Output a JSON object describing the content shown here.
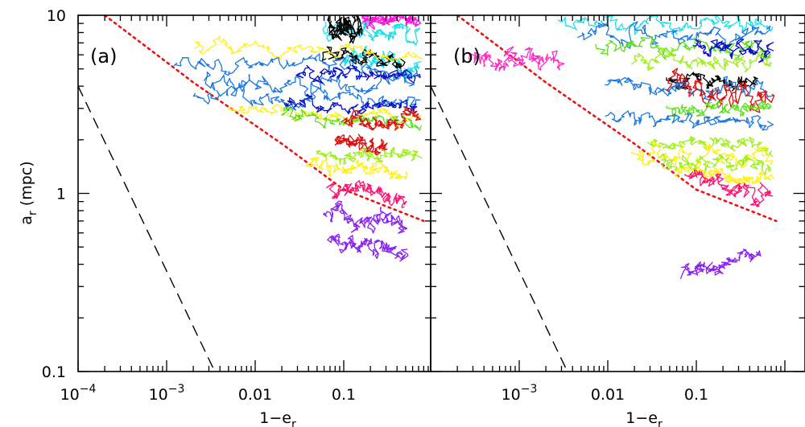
{
  "chart_data": [
    {
      "type": "line",
      "panel": "a",
      "panel_label": "(a)",
      "xlabel": "1−e",
      "xlabel_sub": "r",
      "ylabel": "a",
      "ylabel_sub": "r",
      "ylabel_unit": " (mpc)",
      "xscale": "log",
      "yscale": "log",
      "xlim": [
        0.0001,
        0.8
      ],
      "ylim": [
        0.1,
        10
      ],
      "x_ticks": [
        {
          "value": 0.0001,
          "base": "10",
          "exp": "−4"
        },
        {
          "value": 0.001,
          "base": "10",
          "exp": "−3"
        },
        {
          "value": 0.01,
          "base": "0.01",
          "exp": ""
        },
        {
          "value": 0.1,
          "base": "0.1",
          "exp": ""
        }
      ],
      "y_ticks": [
        {
          "value": 0.1,
          "label": "0.1"
        },
        {
          "value": 1,
          "label": "1"
        },
        {
          "value": 10,
          "label": "10"
        }
      ],
      "reference_lines": [
        {
          "style": "dashed",
          "color": "#000000",
          "x": [
            0.0001,
            0.0035
          ],
          "y": [
            4.0,
            0.1
          ]
        },
        {
          "style": "dotted",
          "color": "#ee1111",
          "x": [
            0.0002,
            0.002,
            0.02,
            0.1,
            0.8
          ],
          "y": [
            10,
            4.2,
            1.9,
            1.05,
            0.7
          ]
        }
      ],
      "series": [
        {
          "color": "#ff10e0",
          "x": [
            0.16,
            0.7
          ],
          "y": [
            9.5,
            9.4
          ],
          "jitter": 0.06
        },
        {
          "color": "#1ee0e8",
          "x": [
            0.06,
            0.7
          ],
          "y": [
            8.5,
            7.8
          ],
          "jitter": 0.07
        },
        {
          "color": "#1ee0e8",
          "x": [
            0.1,
            0.7
          ],
          "y": [
            5.6,
            5.2
          ],
          "jitter": 0.07
        },
        {
          "color": "#000000",
          "x": [
            0.07,
            0.16
          ],
          "y": [
            9.0,
            8.2
          ],
          "jitter": 0.08
        },
        {
          "color": "#000000",
          "x": [
            0.06,
            0.45
          ],
          "y": [
            6.0,
            5.6
          ],
          "jitter": 0.05
        },
        {
          "color": "#fff014",
          "x": [
            0.002,
            0.7
          ],
          "y": [
            6.6,
            6.2
          ],
          "jitter": 0.05
        },
        {
          "color": "#fff014",
          "x": [
            0.005,
            0.7
          ],
          "y": [
            3.0,
            2.6
          ],
          "jitter": 0.05
        },
        {
          "color": "#1a78e0",
          "x": [
            0.0012,
            0.7
          ],
          "y": [
            5.6,
            5.0
          ],
          "jitter": 0.06
        },
        {
          "color": "#1a78e0",
          "x": [
            0.0025,
            0.6
          ],
          "y": [
            4.3,
            4.0
          ],
          "jitter": 0.07
        },
        {
          "color": "#1a78e0",
          "x": [
            0.002,
            0.7
          ],
          "y": [
            3.5,
            3.3
          ],
          "jitter": 0.06
        },
        {
          "color": "#0a10cc",
          "x": [
            0.03,
            0.7
          ],
          "y": [
            4.8,
            4.5
          ],
          "jitter": 0.05
        },
        {
          "color": "#0a10cc",
          "x": [
            0.02,
            0.7
          ],
          "y": [
            3.2,
            3.0
          ],
          "jitter": 0.05
        },
        {
          "color": "#5ae01a",
          "x": [
            0.02,
            0.7
          ],
          "y": [
            2.7,
            2.5
          ],
          "jitter": 0.05
        },
        {
          "color": "#dd1010",
          "x": [
            0.1,
            0.7
          ],
          "y": [
            2.6,
            2.5
          ],
          "jitter": 0.05
        },
        {
          "color": "#dd1010",
          "x": [
            0.08,
            0.3
          ],
          "y": [
            2.0,
            1.8
          ],
          "jitter": 0.05
        },
        {
          "color": "#9ef01a",
          "x": [
            0.05,
            0.7
          ],
          "y": [
            1.65,
            1.55
          ],
          "jitter": 0.05
        },
        {
          "color": "#fff014",
          "x": [
            0.04,
            0.5
          ],
          "y": [
            1.45,
            1.3
          ],
          "jitter": 0.05
        },
        {
          "color": "#ff1474",
          "x": [
            0.07,
            0.5
          ],
          "y": [
            1.1,
            0.92
          ],
          "jitter": 0.06
        },
        {
          "color": "#8a22ee",
          "x": [
            0.06,
            0.5
          ],
          "y": [
            0.8,
            0.65
          ],
          "jitter": 0.07
        },
        {
          "color": "#8a22ee",
          "x": [
            0.07,
            0.5
          ],
          "y": [
            0.55,
            0.45
          ],
          "jitter": 0.06
        }
      ]
    },
    {
      "type": "line",
      "panel": "b",
      "panel_label": "(b)",
      "xlabel": "1−e",
      "xlabel_sub": "r",
      "xscale": "log",
      "yscale": "log",
      "xlim": [
        0.0001,
        0.8
      ],
      "ylim": [
        0.1,
        10
      ],
      "x_ticks": [
        {
          "value": 0.001,
          "base": "10",
          "exp": "−3"
        },
        {
          "value": 0.01,
          "base": "0.01",
          "exp": ""
        },
        {
          "value": 0.1,
          "base": "0.1",
          "exp": ""
        }
      ],
      "reference_lines": [
        {
          "style": "dashed",
          "color": "#000000",
          "x": [
            0.0001,
            0.0035
          ],
          "y": [
            4.0,
            0.1
          ]
        },
        {
          "style": "dotted",
          "color": "#ee1111",
          "x": [
            0.0002,
            0.002,
            0.02,
            0.1,
            0.8
          ],
          "y": [
            10,
            4.2,
            1.9,
            1.05,
            0.7
          ]
        }
      ],
      "series": [
        {
          "color": "#ff2ac8",
          "x": [
            0.0003,
            0.003
          ],
          "y": [
            5.8,
            5.4
          ],
          "jitter": 0.07
        },
        {
          "color": "#1ee0e8",
          "x": [
            0.003,
            0.7
          ],
          "y": [
            9.2,
            8.5
          ],
          "jitter": 0.06
        },
        {
          "color": "#1a78e0",
          "x": [
            0.005,
            0.7
          ],
          "y": [
            8.0,
            7.5
          ],
          "jitter": 0.06
        },
        {
          "color": "#5ae01a",
          "x": [
            0.008,
            0.7
          ],
          "y": [
            7.0,
            6.3
          ],
          "jitter": 0.06
        },
        {
          "color": "#0a10cc",
          "x": [
            0.1,
            0.7
          ],
          "y": [
            6.6,
            6.4
          ],
          "jitter": 0.05
        },
        {
          "color": "#9ef01a",
          "x": [
            0.02,
            0.7
          ],
          "y": [
            5.6,
            5.3
          ],
          "jitter": 0.06
        },
        {
          "color": "#000000",
          "x": [
            0.05,
            0.5
          ],
          "y": [
            4.5,
            4.3
          ],
          "jitter": 0.05
        },
        {
          "color": "#1a78e0",
          "x": [
            0.01,
            0.7
          ],
          "y": [
            3.9,
            3.6
          ],
          "jitter": 0.06
        },
        {
          "color": "#dd1010",
          "x": [
            0.05,
            0.7
          ],
          "y": [
            4.0,
            3.4
          ],
          "jitter": 0.08
        },
        {
          "color": "#5ae01a",
          "x": [
            0.05,
            0.7
          ],
          "y": [
            3.1,
            2.9
          ],
          "jitter": 0.05
        },
        {
          "color": "#1a78e0",
          "x": [
            0.01,
            0.7
          ],
          "y": [
            2.6,
            2.4
          ],
          "jitter": 0.05
        },
        {
          "color": "#9ef01a",
          "x": [
            0.03,
            0.7
          ],
          "y": [
            2.0,
            1.8
          ],
          "jitter": 0.05
        },
        {
          "color": "#fff014",
          "x": [
            0.02,
            0.7
          ],
          "y": [
            1.7,
            1.5
          ],
          "jitter": 0.06
        },
        {
          "color": "#9ef01a",
          "x": [
            0.04,
            0.7
          ],
          "y": [
            1.5,
            1.4
          ],
          "jitter": 0.05
        },
        {
          "color": "#fff014",
          "x": [
            0.06,
            0.7
          ],
          "y": [
            1.3,
            1.2
          ],
          "jitter": 0.05
        },
        {
          "color": "#ff1474",
          "x": [
            0.08,
            0.7
          ],
          "y": [
            1.25,
            0.95
          ],
          "jitter": 0.06
        },
        {
          "color": "#8a22ee",
          "x": [
            0.07,
            0.5
          ],
          "y": [
            0.35,
            0.45
          ],
          "jitter": 0.05
        }
      ]
    }
  ]
}
